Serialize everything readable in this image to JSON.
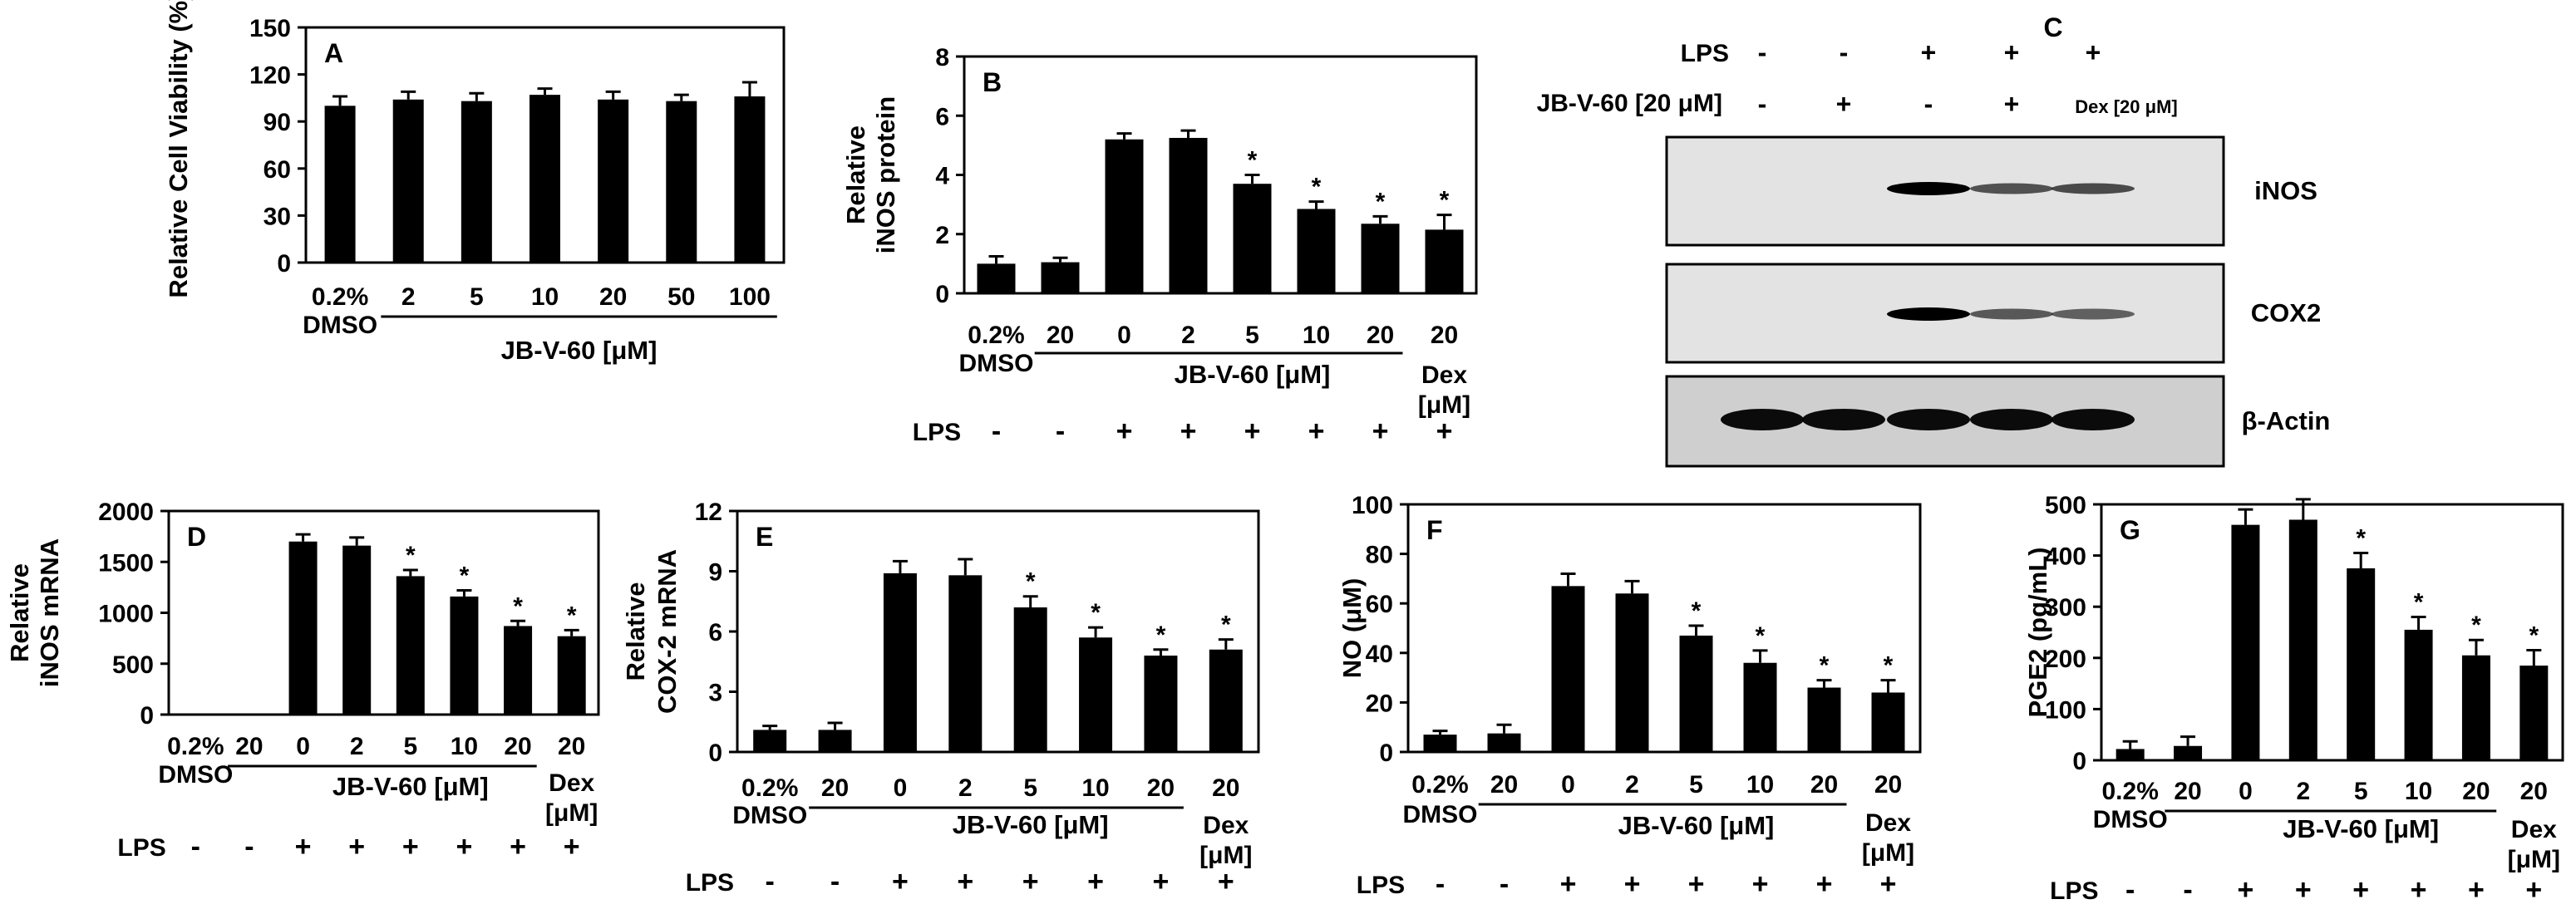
{
  "figure": {
    "panel_c": {
      "letter": "C",
      "lps_label": "LPS",
      "lps_signs": [
        "-",
        "-",
        "+",
        "+",
        "+"
      ],
      "treat_label": "JB-V-60 [20 μM]",
      "treat_signs": [
        "-",
        "+",
        "-",
        "+",
        "Dex [20 μM]"
      ],
      "blots": [
        {
          "label": "iNOS",
          "band_intensity": [
            0,
            0,
            1.0,
            0.45,
            0.5
          ]
        },
        {
          "label": "COX2",
          "band_intensity": [
            0,
            0,
            1.0,
            0.4,
            0.35
          ]
        },
        {
          "label": "β-Actin",
          "band_intensity": [
            1.0,
            1.0,
            1.0,
            1.0,
            1.0
          ]
        }
      ]
    }
  },
  "chart_data": [
    {
      "type": "bar",
      "letter": "A",
      "ylabel": "Relative Cell Viability (%)",
      "ylim": [
        0,
        150
      ],
      "yticks": [
        "0",
        "30",
        "60",
        "90",
        "120",
        "150"
      ],
      "categories": [
        "0.2%",
        "2",
        "5",
        "10",
        "20",
        "50",
        "100"
      ],
      "values": [
        100,
        104,
        103,
        107,
        104,
        103,
        106
      ],
      "errors": [
        6,
        5,
        5,
        4,
        5,
        4,
        9
      ],
      "significant": [
        false,
        false,
        false,
        false,
        false,
        false,
        false
      ],
      "dmso_label": "DMSO",
      "group_label": "JB-V-60 [μM]",
      "lps_signs": []
    },
    {
      "type": "bar",
      "letter": "B",
      "ylabel": [
        "Relative",
        "iNOS protein"
      ],
      "ylim": [
        0,
        8
      ],
      "yticks": [
        "0",
        "2",
        "4",
        "6",
        "8"
      ],
      "categories": [
        "0.2%",
        "20",
        "0",
        "2",
        "5",
        "10",
        "20",
        "20"
      ],
      "values": [
        1.0,
        1.05,
        5.2,
        5.25,
        3.7,
        2.85,
        2.35,
        2.15
      ],
      "errors": [
        0.25,
        0.15,
        0.2,
        0.25,
        0.3,
        0.25,
        0.25,
        0.5
      ],
      "significant": [
        false,
        false,
        false,
        false,
        true,
        true,
        true,
        true
      ],
      "dmso_label": "DMSO",
      "group_label": "JB-V-60 [μM]",
      "dex_label": [
        "Dex",
        "[μM]"
      ],
      "lps_label": "LPS",
      "lps_signs": [
        "-",
        "-",
        "+",
        "+",
        "+",
        "+",
        "+",
        "+"
      ],
      "sig_symbol": "*"
    },
    {
      "type": "bar",
      "letter": "D",
      "ylabel": [
        "Relative",
        "iNOS mRNA"
      ],
      "ylim": [
        0,
        2000
      ],
      "yticks": [
        "0",
        "500",
        "1000",
        "1500",
        "2000"
      ],
      "categories": [
        "0.2%",
        "20",
        "0",
        "2",
        "5",
        "10",
        "20",
        "20"
      ],
      "values": [
        0,
        0,
        1700,
        1660,
        1360,
        1160,
        870,
        770
      ],
      "errors": [
        0,
        0,
        70,
        80,
        60,
        60,
        50,
        60
      ],
      "significant": [
        false,
        false,
        false,
        false,
        true,
        true,
        true,
        true
      ],
      "dmso_label": "DMSO",
      "group_label": "JB-V-60 [μM]",
      "dex_label": [
        "Dex",
        "[μM]"
      ],
      "lps_label": "LPS",
      "lps_signs": [
        "-",
        "-",
        "+",
        "+",
        "+",
        "+",
        "+",
        "+"
      ],
      "sig_symbol": "*"
    },
    {
      "type": "bar",
      "letter": "E",
      "ylabel": [
        "Relative",
        "COX-2 mRNA"
      ],
      "ylim": [
        0,
        12
      ],
      "yticks": [
        "0",
        "3",
        "6",
        "9",
        "12"
      ],
      "categories": [
        "0.2%",
        "20",
        "0",
        "2",
        "5",
        "10",
        "20",
        "20"
      ],
      "values": [
        1.1,
        1.1,
        8.9,
        8.8,
        7.2,
        5.7,
        4.8,
        5.1
      ],
      "errors": [
        0.2,
        0.35,
        0.6,
        0.8,
        0.55,
        0.5,
        0.3,
        0.5
      ],
      "significant": [
        false,
        false,
        false,
        false,
        true,
        true,
        true,
        true
      ],
      "dmso_label": "DMSO",
      "group_label": "JB-V-60 [μM]",
      "dex_label": [
        "Dex",
        "[μM]"
      ],
      "lps_label": "LPS",
      "lps_signs": [
        "-",
        "-",
        "+",
        "+",
        "+",
        "+",
        "+",
        "+"
      ],
      "sig_symbol": "*"
    },
    {
      "type": "bar",
      "letter": "F",
      "ylabel": "NO (μM)",
      "ylim": [
        0,
        100
      ],
      "yticks": [
        "0",
        "20",
        "40",
        "60",
        "80",
        "100"
      ],
      "categories": [
        "0.2%",
        "20",
        "0",
        "2",
        "5",
        "10",
        "20",
        "20"
      ],
      "values": [
        7,
        7.5,
        67,
        64,
        47,
        36,
        26,
        24
      ],
      "errors": [
        1.5,
        3.5,
        5,
        5,
        4,
        5,
        3,
        5
      ],
      "significant": [
        false,
        false,
        false,
        false,
        true,
        true,
        true,
        true
      ],
      "dmso_label": "DMSO",
      "group_label": "JB-V-60 [μM]",
      "dex_label": [
        "Dex",
        "[μM]"
      ],
      "lps_label": "LPS",
      "lps_signs": [
        "-",
        "-",
        "+",
        "+",
        "+",
        "+",
        "+",
        "+"
      ],
      "sig_symbol": "*"
    },
    {
      "type": "bar",
      "letter": "G",
      "ylabel": "PGE2 (pg/mL)",
      "ylim": [
        0,
        500
      ],
      "yticks": [
        "0",
        "100",
        "200",
        "300",
        "400",
        "500"
      ],
      "categories": [
        "0.2%",
        "20",
        "0",
        "2",
        "5",
        "10",
        "20",
        "20"
      ],
      "values": [
        22,
        28,
        460,
        470,
        375,
        255,
        205,
        185
      ],
      "errors": [
        15,
        18,
        30,
        40,
        30,
        25,
        30,
        30
      ],
      "significant": [
        false,
        false,
        false,
        false,
        true,
        true,
        true,
        true
      ],
      "dmso_label": "DMSO",
      "group_label": "JB-V-60 [μM]",
      "dex_label": [
        "Dex",
        "[μM]"
      ],
      "lps_label": "LPS",
      "lps_signs": [
        "-",
        "-",
        "+",
        "+",
        "+",
        "+",
        "+",
        "+"
      ],
      "sig_symbol": "*"
    }
  ]
}
